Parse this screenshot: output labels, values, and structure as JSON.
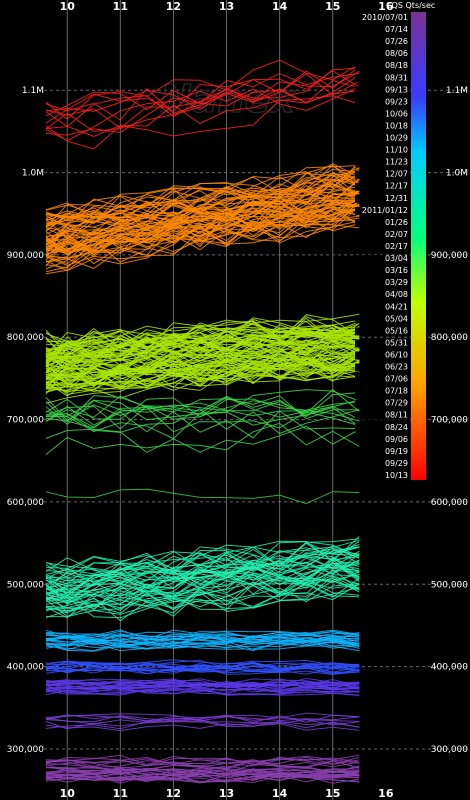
{
  "watermark": "Nanex",
  "chart_data": {
    "type": "line",
    "title": "",
    "xlabel": "",
    "ylabel": "CQS Qts/sec",
    "x_ticks": [
      "10",
      "11",
      "12",
      "13",
      "14",
      "15",
      "16"
    ],
    "xlim": [
      9.6,
      16.7
    ],
    "ylim": [
      255000,
      1195000
    ],
    "y_ticks": [
      "300,000",
      "400,000",
      "500,000",
      "600,000",
      "700,000",
      "800,000",
      "900,000",
      "1.0M",
      "1.1M"
    ],
    "y_tick_values": [
      300000,
      400000,
      500000,
      600000,
      700000,
      800000,
      900000,
      1000000,
      1100000
    ],
    "grid": true,
    "legend_title": "CQS Qts/sec",
    "legend_placement": "right",
    "legend_dates": [
      "2010/07/01",
      "07/14",
      "07/26",
      "08/06",
      "08/18",
      "08/31",
      "09/13",
      "09/23",
      "10/06",
      "10/18",
      "10/29",
      "11/10",
      "11/23",
      "12/07",
      "12/17",
      "12/31",
      "2011/01/12",
      "01/26",
      "02/07",
      "02/17",
      "03/04",
      "03/16",
      "03/29",
      "04/08",
      "04/21",
      "05/04",
      "05/16",
      "05/31",
      "06/10",
      "06/23",
      "07/06",
      "07/18",
      "07/29",
      "08/11",
      "08/24",
      "09/06",
      "09/19",
      "09/29",
      "10/13"
    ],
    "colors": {
      "background": "#000000",
      "grid": "#666666",
      "text": "#ffffff",
      "gradient_top": "#7b3294",
      "gradient_bottom": "#ff0000"
    },
    "groups": [
      {
        "date_range": "2010/07/01 - 08/18",
        "color": "#ff2020",
        "level_start": 1060000,
        "level_end": 1110000,
        "count": 12
      },
      {
        "date_range": "08/31 - 12/31",
        "color": "#ff8a00",
        "level_start": 920000,
        "level_end": 975000,
        "count": 70
      },
      {
        "date_range": "2011/01/12 - 07/29",
        "color": "#a8e600",
        "level_start": 765000,
        "level_end": 790000,
        "count": 90
      },
      {
        "date_range": "08/11 - 10/13",
        "color": "#3ad84a",
        "level_start": 690000,
        "level_end": 700000,
        "count": 14
      },
      {
        "date_range": "outlier",
        "color": "#34cc46",
        "level_start": 610000,
        "level_end": 605000,
        "count": 1
      },
      {
        "date_range": "high cyan",
        "color": "#22f0b0",
        "level_start": 490000,
        "level_end": 520000,
        "count": 50
      },
      {
        "date_range": "cyan blue",
        "color": "#10b4ff",
        "level_start": 432000,
        "level_end": 432000,
        "count": 22
      },
      {
        "date_range": "blue",
        "color": "#3050ff",
        "level_start": 400000,
        "level_end": 400000,
        "count": 15
      },
      {
        "date_range": "blue violet",
        "color": "#5a38e8",
        "level_start": 375000,
        "level_end": 375000,
        "count": 22
      },
      {
        "date_range": "violet",
        "color": "#7a3cd0",
        "level_start": 333000,
        "level_end": 333000,
        "count": 8
      },
      {
        "date_range": "purple",
        "color": "#8b3fb0",
        "level_start": 275000,
        "level_end": 275000,
        "count": 30
      }
    ]
  }
}
